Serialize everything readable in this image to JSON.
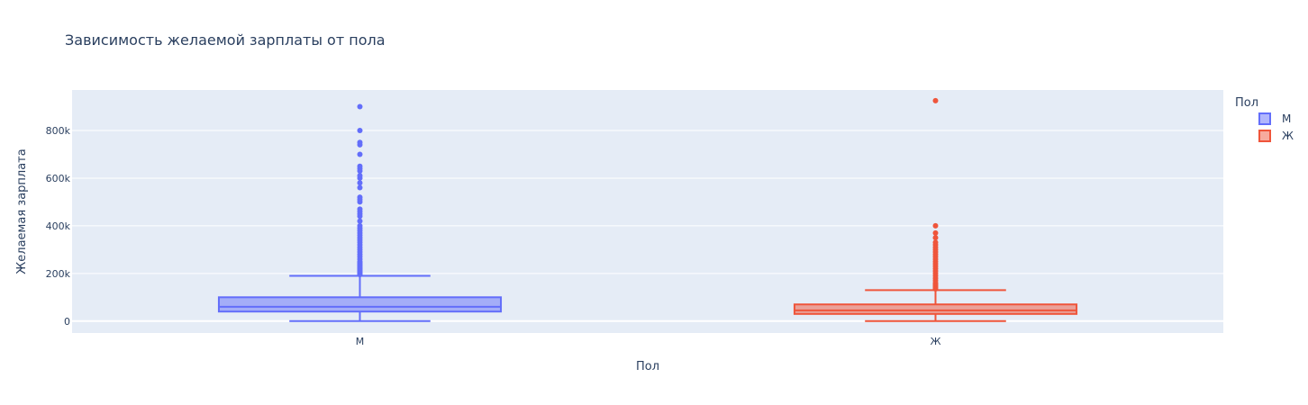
{
  "chart_data": {
    "type": "box",
    "title": "Зависимость желаемой зарплаты от пола",
    "xlabel": "Пол",
    "ylabel": "Желаемая зарплата",
    "categories": [
      "М",
      "Ж"
    ],
    "ylim": [
      -50000,
      970000
    ],
    "y_ticks": [
      0,
      200000,
      400000,
      600000,
      800000
    ],
    "y_tick_labels": [
      "0",
      "200k",
      "400k",
      "600k",
      "800k"
    ],
    "grid": true,
    "legend_title": "Пол",
    "legend_position": "top-right",
    "colors": {
      "background": "#e5ecf6",
      "grid": "#ffffff",
      "text": "#2a3f5f"
    },
    "series": [
      {
        "name": "М",
        "category": "М",
        "color": "#636efa",
        "fill": "rgba(99,110,250,0.5)",
        "min": 0,
        "q1": 40000,
        "median": 60000,
        "q3": 100000,
        "max": 190000,
        "outliers": [
          195000,
          200000,
          205000,
          210000,
          215000,
          220000,
          225000,
          230000,
          235000,
          240000,
          245000,
          250000,
          260000,
          270000,
          280000,
          290000,
          300000,
          310000,
          320000,
          330000,
          340000,
          350000,
          360000,
          370000,
          380000,
          390000,
          400000,
          420000,
          440000,
          450000,
          460000,
          470000,
          500000,
          510000,
          520000,
          560000,
          580000,
          600000,
          610000,
          630000,
          640000,
          650000,
          700000,
          740000,
          750000,
          800000,
          900000
        ]
      },
      {
        "name": "Ж",
        "category": "Ж",
        "color": "#ef553b",
        "fill": "rgba(239,85,59,0.5)",
        "min": 0,
        "q1": 30000,
        "median": 45000,
        "q3": 70000,
        "max": 130000,
        "outliers": [
          135000,
          140000,
          145000,
          150000,
          155000,
          160000,
          170000,
          180000,
          190000,
          200000,
          210000,
          220000,
          230000,
          240000,
          250000,
          260000,
          270000,
          280000,
          290000,
          300000,
          310000,
          320000,
          330000,
          350000,
          370000,
          400000,
          925000
        ]
      }
    ]
  }
}
